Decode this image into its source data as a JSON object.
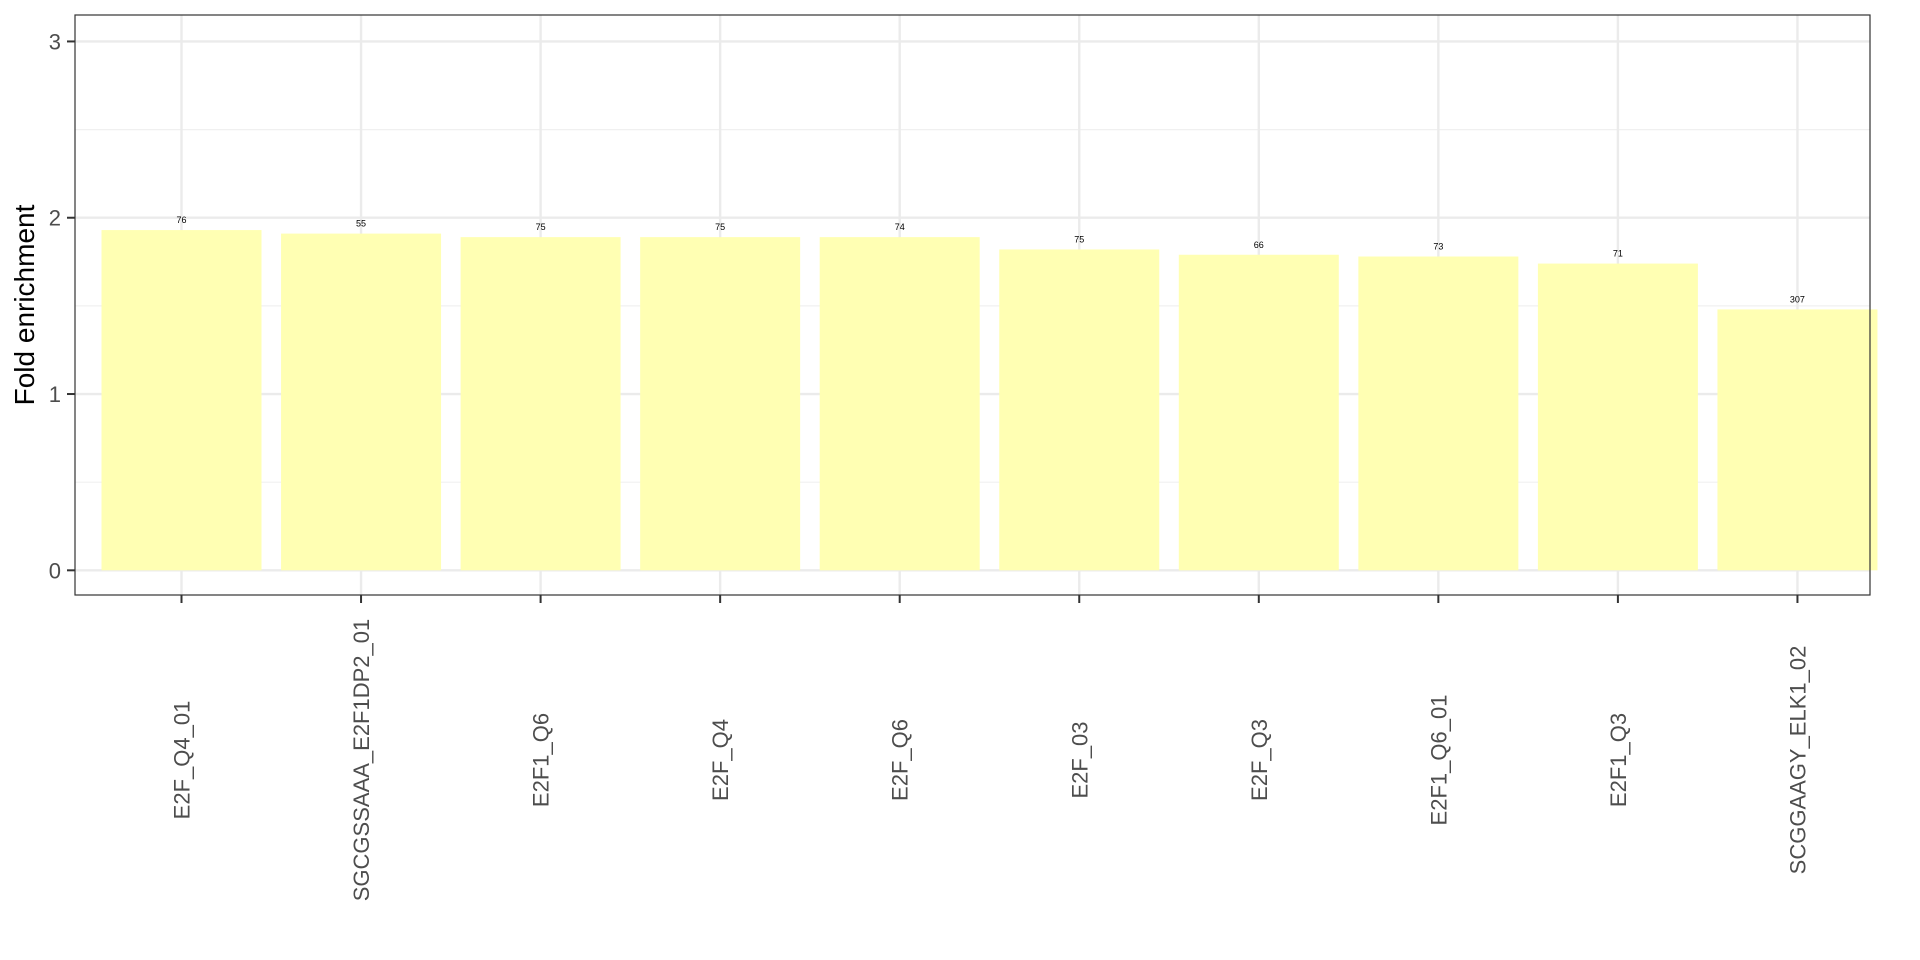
{
  "chart_data": {
    "type": "bar",
    "title": "",
    "xlabel": "",
    "ylabel": "Fold enrichment",
    "ylim": [
      -0.14,
      3.15
    ],
    "yticks": [
      0,
      1,
      2,
      3
    ],
    "grid": true,
    "bar_color": "#FFFFB3",
    "categories": [
      "E2F_Q4_01",
      "SGCGSSAAA_E2F1DP2_01",
      "E2F1_Q6",
      "E2F_Q4",
      "E2F_Q6",
      "E2F_03",
      "E2F_Q3",
      "E2F1_Q6_01",
      "E2F1_Q3",
      "SCGGAAGY_ELK1_02"
    ],
    "values": [
      1.93,
      1.91,
      1.89,
      1.89,
      1.89,
      1.82,
      1.79,
      1.78,
      1.74,
      1.48
    ],
    "data_labels": [
      "76",
      "55",
      "75",
      "75",
      "74",
      "75",
      "66",
      "73",
      "71",
      "307"
    ]
  }
}
